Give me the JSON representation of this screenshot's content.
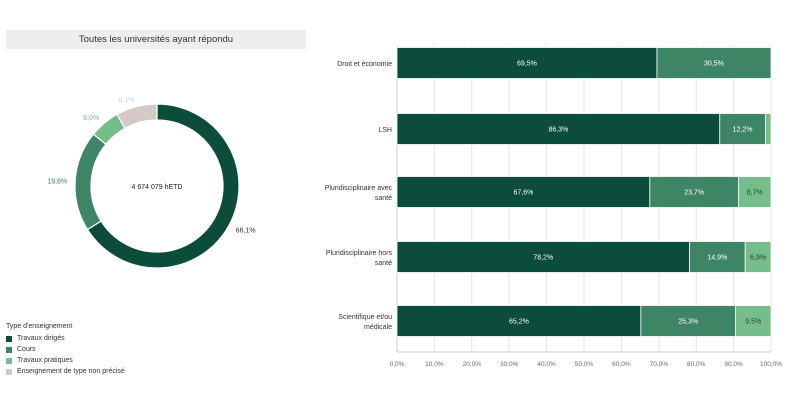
{
  "panel_title": "Toutes les universités ayant répondu",
  "legend": {
    "title": "Type d'enseignement",
    "items": [
      {
        "label": "Travaux dirigés",
        "color": "#0b4d3a"
      },
      {
        "label": "Cours",
        "color": "#3e8566"
      },
      {
        "label": "Travaux pratiques",
        "color": "#76bd8c"
      },
      {
        "label": "Enseignement de type non précisé",
        "color": "#d4c9c4"
      }
    ]
  },
  "chart_data": [
    {
      "type": "pie",
      "donut": true,
      "center_label": "4 674 079 hETD",
      "categories": [
        "Travaux dirigés",
        "Cours",
        "Travaux pratiques",
        "Enseignement de type non précisé"
      ],
      "values": [
        66.1,
        19.8,
        6.0,
        8.1
      ],
      "value_labels": [
        "66,1%",
        "19,8%",
        "6,0%",
        "8,1%"
      ],
      "colors": [
        "#0b4d3a",
        "#3e8566",
        "#76bd8c",
        "#d4c9c4"
      ]
    },
    {
      "type": "bar",
      "orientation": "horizontal",
      "stacked": true,
      "categories": [
        [
          "Droit et économie"
        ],
        [
          "LSH"
        ],
        [
          "Pluridisciplinaire avec",
          "santé"
        ],
        [
          "Pluridisciplinaire hors",
          "santé"
        ],
        [
          "Scientifique et/ou",
          "médicale"
        ]
      ],
      "series": [
        {
          "name": "Travaux dirigés",
          "color": "#0b4d3a",
          "values": [
            69.5,
            86.3,
            67.6,
            78.2,
            65.2
          ],
          "labels": [
            "69,5%",
            "86,3%",
            "67,6%",
            "78,2%",
            "65,2%"
          ]
        },
        {
          "name": "Cours",
          "color": "#3e8566",
          "values": [
            30.5,
            12.2,
            23.7,
            14.9,
            25.3
          ],
          "labels": [
            "30,5%",
            "12,2%",
            "23,7%",
            "14,9%",
            "25,3%"
          ]
        },
        {
          "name": "Travaux pratiques",
          "color": "#76bd8c",
          "values": [
            0.0,
            1.5,
            8.7,
            6.9,
            9.5
          ],
          "labels": [
            "",
            "",
            "8,7%",
            "6,9%",
            "9,5%"
          ]
        }
      ],
      "xlim": [
        0,
        100
      ],
      "xticks": [
        "0,0%",
        "10,0%",
        "20,0%",
        "30,0%",
        "40,0%",
        "50,0%",
        "60,0%",
        "70,0%",
        "80,0%",
        "90,0%",
        "100,0%"
      ],
      "grid": true
    }
  ]
}
